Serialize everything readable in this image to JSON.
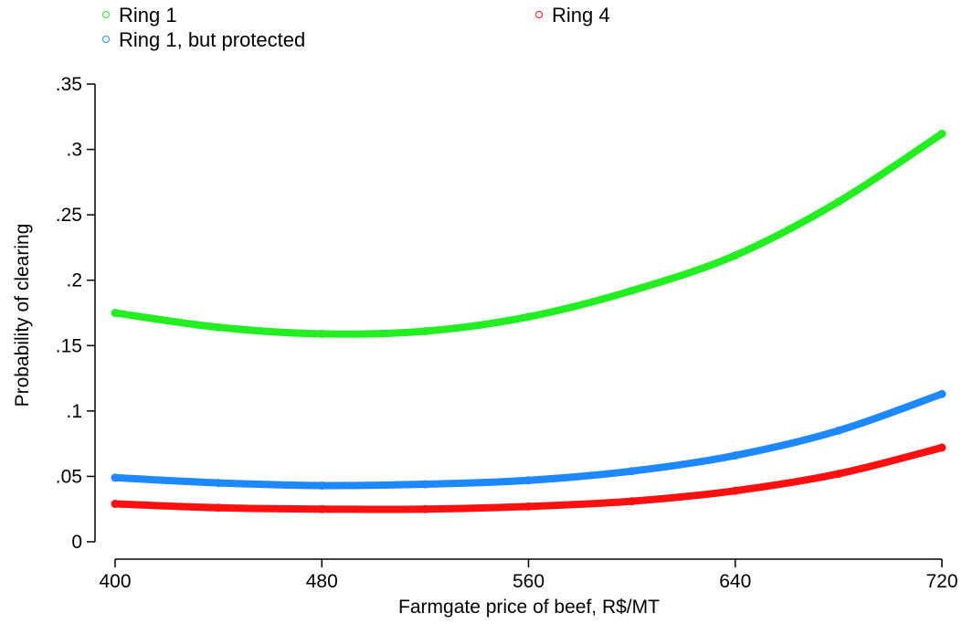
{
  "chart_data": {
    "type": "line",
    "title": "",
    "xlabel": "Farmgate price of beef, R$/MT",
    "ylabel": "Probability of clearing",
    "xlim": [
      400,
      720
    ],
    "ylim": [
      0,
      0.35
    ],
    "x_ticks": [
      400,
      480,
      560,
      640,
      720
    ],
    "x_tick_labels": [
      "400",
      "480",
      "560",
      "640",
      "720"
    ],
    "y_ticks": [
      0,
      0.05,
      0.1,
      0.15,
      0.2,
      0.25,
      0.3,
      0.35
    ],
    "y_tick_labels": [
      "0",
      ".05",
      ".1",
      ".15",
      ".2",
      ".25",
      ".3",
      ".35"
    ],
    "grid": false,
    "legend_position": "top",
    "x": [
      400,
      440,
      480,
      520,
      560,
      600,
      640,
      680,
      720
    ],
    "series": [
      {
        "name": "Ring 1",
        "color": "#22ee22",
        "values": [
          0.175,
          0.164,
          0.159,
          0.161,
          0.172,
          0.192,
          0.219,
          0.26,
          0.312
        ]
      },
      {
        "name": "Ring 1, but protected",
        "color": "#1e88ff",
        "values": [
          0.049,
          0.045,
          0.043,
          0.044,
          0.047,
          0.054,
          0.066,
          0.085,
          0.113
        ]
      },
      {
        "name": "Ring 4",
        "color": "#ff1010",
        "values": [
          0.029,
          0.026,
          0.025,
          0.025,
          0.027,
          0.031,
          0.039,
          0.052,
          0.072
        ]
      }
    ]
  }
}
